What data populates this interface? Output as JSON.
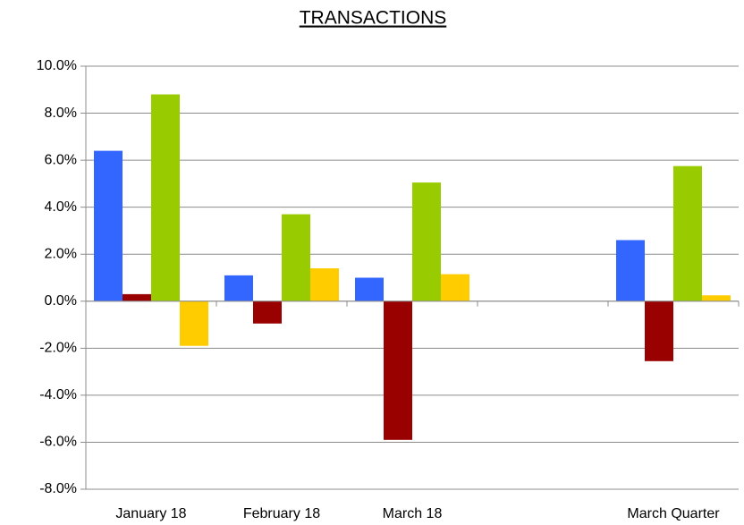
{
  "chart_data": {
    "type": "bar",
    "title": "TRANSACTIONS",
    "categories": [
      "January 18",
      "February 18",
      "March 18",
      null,
      "March Quarter"
    ],
    "series": [
      {
        "color": "#3366ff",
        "values": [
          6.4,
          1.1,
          1.0,
          null,
          2.6
        ]
      },
      {
        "color": "#990000",
        "values": [
          0.3,
          -0.95,
          -5.9,
          null,
          -2.55
        ]
      },
      {
        "color": "#99cc00",
        "values": [
          8.8,
          3.7,
          5.05,
          null,
          5.75
        ]
      },
      {
        "color": "#ffcc00",
        "values": [
          -1.9,
          1.4,
          1.15,
          null,
          0.25
        ]
      }
    ],
    "ylim": [
      -8,
      10
    ],
    "yticks": [
      {
        "value": -8,
        "label": "-8.0%"
      },
      {
        "value": -6,
        "label": "-6.0%"
      },
      {
        "value": -4,
        "label": "-4.0%"
      },
      {
        "value": -2,
        "label": "-2.0%"
      },
      {
        "value": 0,
        "label": "0.0%"
      },
      {
        "value": 2,
        "label": "2.0%"
      },
      {
        "value": 4,
        "label": "4.0%"
      },
      {
        "value": 6,
        "label": "6.0%"
      },
      {
        "value": 8,
        "label": "8.0%"
      },
      {
        "value": 10,
        "label": "10.0%"
      }
    ],
    "grid": true
  }
}
